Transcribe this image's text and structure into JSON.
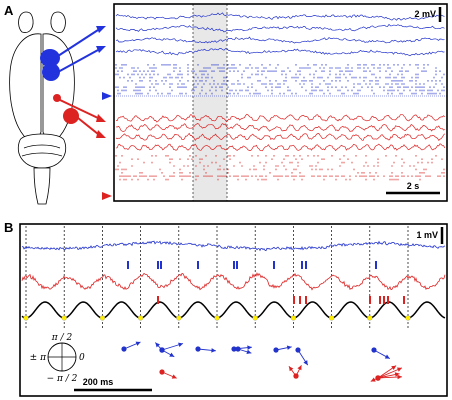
{
  "panel_a": {
    "letter": "A",
    "scale_voltage": "2 mV",
    "scale_time": "2 s"
  },
  "panel_b": {
    "letter": "B",
    "scale_voltage": "1 mV",
    "scale_time": "200 ms",
    "phase_labels": {
      "top": "π / 2",
      "left": "± π",
      "right": "0",
      "bottom": "− π / 2"
    }
  },
  "colors": {
    "blue": "#2233cc",
    "red": "#dd2222",
    "black": "#000000",
    "highlight": "#e6e6e6",
    "yellow": "#ffee00"
  }
}
